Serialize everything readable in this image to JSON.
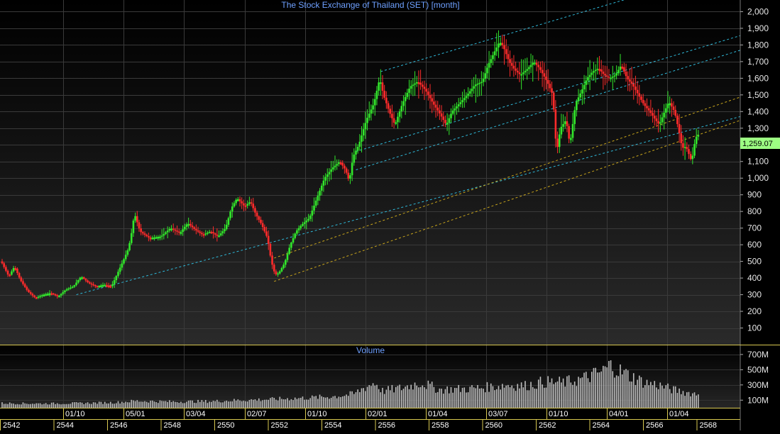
{
  "chart_data": {
    "type": "candlestick",
    "title": "The Stock Exchange of Thailand (SET) [month]",
    "last_price_label": "1,259.07",
    "price_axis": {
      "ticks": [
        100,
        200,
        300,
        400,
        500,
        600,
        700,
        800,
        900,
        1000,
        1100,
        1200,
        1300,
        1400,
        1500,
        1600,
        1700,
        1800,
        1900,
        2000
      ],
      "tick_labels": [
        "100",
        "200",
        "300",
        "400",
        "500",
        "600",
        "700",
        "800",
        "900",
        "1,000",
        "1,100",
        "1,200",
        "1,300",
        "1,400",
        "1,500",
        "1,600",
        "1,700",
        "1,800",
        "1,900",
        "2,000"
      ],
      "ylim": [
        0,
        2070
      ]
    },
    "volume_panel": {
      "label": "Volume",
      "ticks": [
        100,
        300,
        500,
        700
      ],
      "tick_labels": [
        "100M",
        "300M",
        "500M",
        "700M"
      ],
      "ylim": [
        0,
        820
      ]
    },
    "x_axis": {
      "date_labels": [
        "01/10",
        "05/01",
        "03/04",
        "02/07",
        "01/10",
        "02/01",
        "01/04",
        "03/07",
        "01/10",
        "04/01",
        "01/04"
      ],
      "year_labels": [
        "2542",
        "2544",
        "2546",
        "2548",
        "2550",
        "2552",
        "2554",
        "2556",
        "2558",
        "2560",
        "2562",
        "2564",
        "2566",
        "2568"
      ],
      "months_range": [
        "1999-01",
        "2025-06"
      ]
    },
    "price_path": [
      [
        0,
        500
      ],
      [
        4,
        410
      ],
      [
        7,
        470
      ],
      [
        10,
        390
      ],
      [
        14,
        320
      ],
      [
        18,
        280
      ],
      [
        22,
        300
      ],
      [
        26,
        310
      ],
      [
        30,
        290
      ],
      [
        34,
        330
      ],
      [
        38,
        350
      ],
      [
        42,
        410
      ],
      [
        46,
        370
      ],
      [
        50,
        350
      ],
      [
        54,
        360
      ],
      [
        58,
        350
      ],
      [
        60,
        400
      ],
      [
        64,
        500
      ],
      [
        67,
        580
      ],
      [
        69,
        700
      ],
      [
        70,
        790
      ],
      [
        73,
        680
      ],
      [
        78,
        640
      ],
      [
        84,
        650
      ],
      [
        89,
        700
      ],
      [
        94,
        670
      ],
      [
        98,
        730
      ],
      [
        102,
        690
      ],
      [
        106,
        660
      ],
      [
        110,
        680
      ],
      [
        114,
        650
      ],
      [
        118,
        700
      ],
      [
        121,
        820
      ],
      [
        124,
        880
      ],
      [
        128,
        830
      ],
      [
        131,
        860
      ],
      [
        134,
        780
      ],
      [
        137,
        720
      ],
      [
        140,
        640
      ],
      [
        142,
        500
      ],
      [
        144,
        420
      ],
      [
        146,
        430
      ],
      [
        149,
        490
      ],
      [
        152,
        600
      ],
      [
        155,
        680
      ],
      [
        158,
        720
      ],
      [
        162,
        760
      ],
      [
        166,
        880
      ],
      [
        170,
        1000
      ],
      [
        174,
        1060
      ],
      [
        178,
        1100
      ],
      [
        181,
        1050
      ],
      [
        183,
        980
      ],
      [
        185,
        1130
      ],
      [
        188,
        1200
      ],
      [
        192,
        1350
      ],
      [
        196,
        1450
      ],
      [
        199,
        1600
      ],
      [
        201,
        1500
      ],
      [
        204,
        1400
      ],
      [
        207,
        1320
      ],
      [
        211,
        1450
      ],
      [
        215,
        1550
      ],
      [
        219,
        1580
      ],
      [
        223,
        1530
      ],
      [
        227,
        1450
      ],
      [
        231,
        1380
      ],
      [
        234,
        1320
      ],
      [
        237,
        1400
      ],
      [
        241,
        1450
      ],
      [
        245,
        1500
      ],
      [
        249,
        1560
      ],
      [
        253,
        1580
      ],
      [
        256,
        1680
      ],
      [
        259,
        1750
      ],
      [
        262,
        1820
      ],
      [
        264,
        1790
      ],
      [
        267,
        1700
      ],
      [
        270,
        1650
      ],
      [
        273,
        1620
      ],
      [
        277,
        1660
      ],
      [
        280,
        1700
      ],
      [
        283,
        1660
      ],
      [
        287,
        1580
      ],
      [
        290,
        1500
      ],
      [
        292,
        1150
      ],
      [
        294,
        1300
      ],
      [
        297,
        1350
      ],
      [
        299,
        1200
      ],
      [
        302,
        1450
      ],
      [
        305,
        1520
      ],
      [
        308,
        1600
      ],
      [
        311,
        1640
      ],
      [
        314,
        1660
      ],
      [
        317,
        1620
      ],
      [
        320,
        1600
      ],
      [
        323,
        1620
      ],
      [
        326,
        1680
      ],
      [
        329,
        1600
      ],
      [
        332,
        1560
      ],
      [
        335,
        1500
      ],
      [
        338,
        1440
      ],
      [
        341,
        1400
      ],
      [
        344,
        1350
      ],
      [
        346,
        1320
      ],
      [
        348,
        1380
      ],
      [
        351,
        1460
      ],
      [
        354,
        1400
      ],
      [
        356,
        1300
      ],
      [
        358,
        1180
      ],
      [
        360,
        1190
      ],
      [
        363,
        1100
      ],
      [
        365,
        1240
      ],
      [
        366,
        1259.07
      ]
    ],
    "volume_path": [
      [
        0,
        60
      ],
      [
        20,
        55
      ],
      [
        40,
        60
      ],
      [
        60,
        70
      ],
      [
        70,
        90
      ],
      [
        90,
        80
      ],
      [
        110,
        85
      ],
      [
        125,
        100
      ],
      [
        140,
        110
      ],
      [
        160,
        130
      ],
      [
        175,
        150
      ],
      [
        185,
        180
      ],
      [
        190,
        260
      ],
      [
        196,
        330
      ],
      [
        200,
        220
      ],
      [
        210,
        260
      ],
      [
        220,
        330
      ],
      [
        230,
        240
      ],
      [
        245,
        250
      ],
      [
        255,
        270
      ],
      [
        265,
        300
      ],
      [
        275,
        290
      ],
      [
        285,
        340
      ],
      [
        295,
        330
      ],
      [
        305,
        380
      ],
      [
        315,
        470
      ],
      [
        320,
        560
      ],
      [
        325,
        480
      ],
      [
        330,
        420
      ],
      [
        338,
        330
      ],
      [
        345,
        300
      ],
      [
        352,
        240
      ],
      [
        360,
        200
      ],
      [
        366,
        180
      ]
    ],
    "trendlines": [
      {
        "color": "#2fb9d9",
        "from": [
          39,
          300
        ],
        "to": [
          300,
          1100
        ]
      },
      {
        "color": "#c8a51c",
        "from": [
          143,
          380
        ],
        "to": [
          366,
          1260
        ]
      },
      {
        "color": "#c8a51c",
        "from": [
          143,
          520
        ],
        "to": [
          366,
          1400
        ]
      },
      {
        "color": "#2fb9d9",
        "from": [
          186,
          1050
        ],
        "to": [
          366,
          1690
        ]
      },
      {
        "color": "#2fb9d9",
        "from": [
          186,
          1160
        ],
        "to": [
          366,
          1780
        ]
      },
      {
        "color": "#2fb9d9",
        "from": [
          199,
          1640
        ],
        "to": [
          300,
          1980
        ]
      }
    ]
  }
}
